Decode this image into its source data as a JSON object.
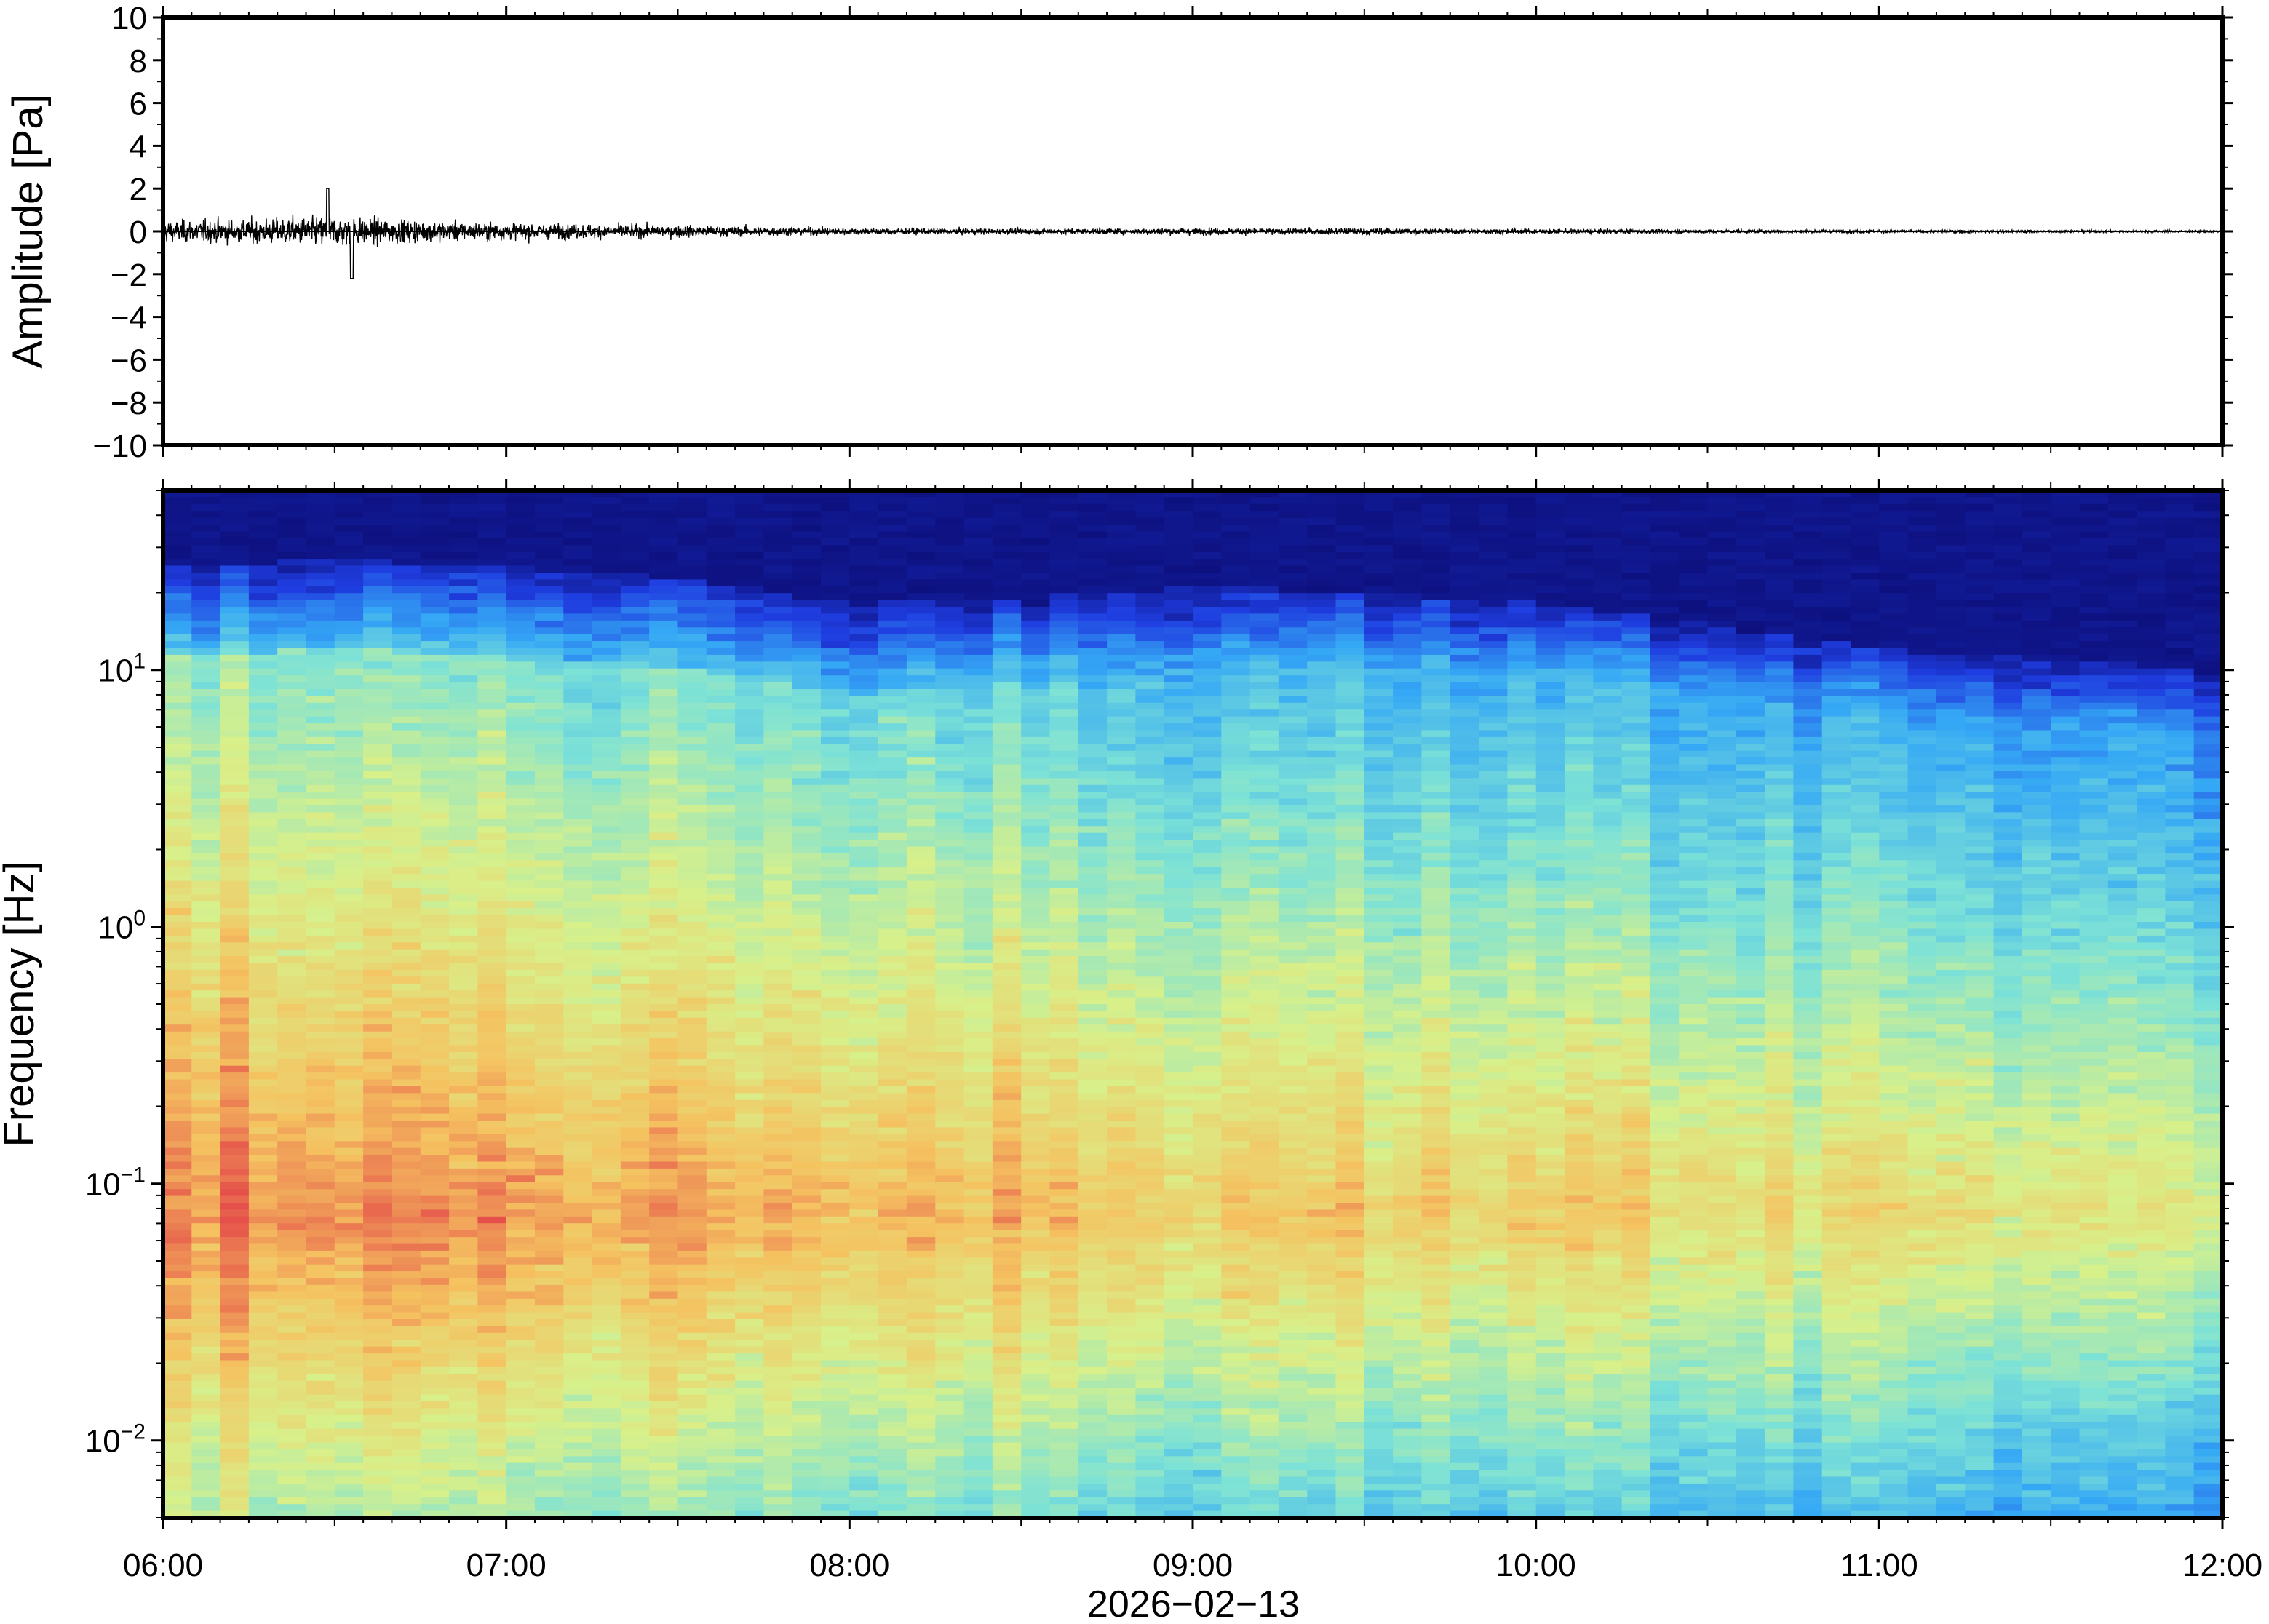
{
  "chart_data": [
    {
      "type": "line",
      "title": "",
      "ylabel": "Amplitude [Pa]",
      "xlabel": "",
      "ylim": [
        -10,
        10
      ],
      "yticks": [
        -10,
        -8,
        -6,
        -4,
        -2,
        0,
        2,
        4,
        6,
        8,
        10
      ],
      "ytick_labels": [
        "−10",
        "−8",
        "−6",
        "−4",
        "−2",
        "0",
        "2",
        "4",
        "6",
        "8",
        "10"
      ],
      "x_range_hours": [
        6,
        12
      ],
      "series": [
        {
          "x_hours": [
            6.0,
            6.25,
            6.5,
            6.75,
            7.0,
            7.25,
            7.5,
            7.75,
            8.0,
            8.25,
            8.5,
            8.75,
            9.0,
            9.25,
            9.5,
            9.75,
            10.0,
            10.25,
            10.5,
            10.75,
            11.0,
            11.25,
            11.5,
            11.75,
            12.0
          ],
          "envelope_pa": [
            0.9,
            1.0,
            1.3,
            0.9,
            0.7,
            0.6,
            0.5,
            0.4,
            0.3,
            0.25,
            0.25,
            0.25,
            0.3,
            0.25,
            0.3,
            0.2,
            0.2,
            0.18,
            0.15,
            0.15,
            0.12,
            0.12,
            0.1,
            0.1,
            0.1
          ],
          "max_peak_pa": 2.0,
          "min_peak_pa": -2.2
        }
      ],
      "grid": false,
      "colors": {
        "trace": "#000000"
      }
    },
    {
      "type": "heatmap",
      "title": "",
      "ylabel": "Frequency [Hz]",
      "xlabel": "2026−02−13",
      "yscale": "log",
      "ylim": [
        0.005,
        50
      ],
      "yticks": [
        0.01,
        0.1,
        1,
        10
      ],
      "ytick_labels": [
        {
          "base": "10",
          "exp": "−2"
        },
        {
          "base": "10",
          "exp": "−1"
        },
        {
          "base": "10",
          "exp": "0"
        },
        {
          "base": "10",
          "exp": "1"
        }
      ],
      "x_range_hours": [
        6,
        12
      ],
      "xticks_hours": [
        6,
        7,
        8,
        9,
        10,
        11,
        12
      ],
      "xtick_labels": [
        "06:00",
        "07:00",
        "08:00",
        "09:00",
        "10:00",
        "11:00",
        "12:00"
      ],
      "colormap": [
        "#0b0b73",
        "#1f3de0",
        "#35a8f5",
        "#7de2d6",
        "#d8f08a",
        "#f5c260",
        "#e5504a"
      ],
      "time_bins_hours": [
        6.0,
        6.5,
        7.0,
        7.5,
        8.0,
        8.5,
        9.0,
        9.5,
        10.0,
        10.5,
        11.0,
        11.5,
        12.0
      ],
      "upper_cutoff_hz": [
        25,
        27,
        25,
        23,
        18,
        19,
        21,
        20,
        18,
        15,
        12,
        11,
        10
      ],
      "peak_level_band_hz": [
        0.03,
        0.2
      ],
      "grid": false
    }
  ]
}
